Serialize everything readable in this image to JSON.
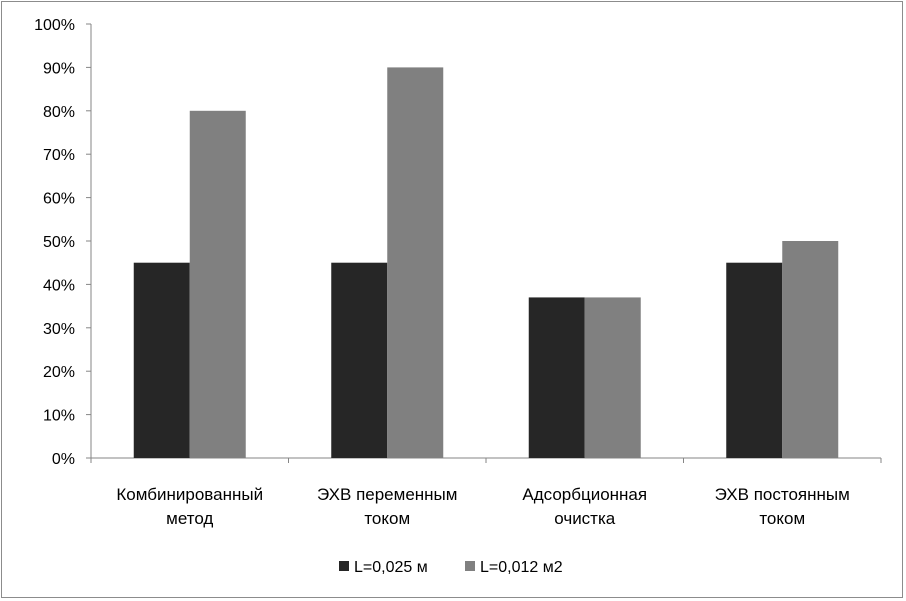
{
  "chart_data": {
    "type": "bar",
    "categories": [
      [
        "Комбинированный",
        "метод"
      ],
      [
        "ЭХВ переменным",
        "током"
      ],
      [
        "Адсорбционная",
        "очистка"
      ],
      [
        "ЭХВ постоянным",
        "током"
      ]
    ],
    "series": [
      {
        "name": "L=0,025 м",
        "color": "#262626",
        "values": [
          45,
          45,
          37,
          45
        ]
      },
      {
        "name": "L=0,012 м2",
        "color": "#808080",
        "values": [
          80,
          90,
          37,
          50
        ]
      }
    ],
    "y_ticks": [
      "0%",
      "10%",
      "20%",
      "30%",
      "40%",
      "50%",
      "60%",
      "70%",
      "80%",
      "90%",
      "100%"
    ],
    "ylim": [
      0,
      100
    ],
    "y_unit": "%",
    "grid": false,
    "legend_position": "bottom"
  }
}
